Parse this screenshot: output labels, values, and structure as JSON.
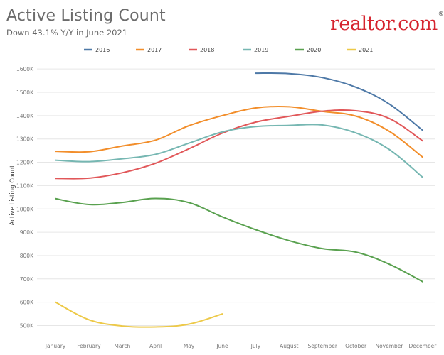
{
  "header": {
    "title": "Active Listing Count",
    "subtitle": "Down 43.1% Y/Y in June 2021",
    "logo_text": "realtor.com",
    "logo_mark": "®"
  },
  "colors": {
    "logo": "#d6242f",
    "grid": "#e6e6e6"
  },
  "chart_data": {
    "type": "line",
    "title": "Active Listing Count",
    "subtitle": "Down 43.1% Y/Y in June 2021",
    "xlabel": "",
    "ylabel": "Active Listing Count",
    "categories": [
      "January",
      "February",
      "March",
      "April",
      "May",
      "June",
      "July",
      "August",
      "September",
      "October",
      "November",
      "December"
    ],
    "y_ticks": [
      "500K",
      "600K",
      "700K",
      "800K",
      "900K",
      "1000K",
      "1100K",
      "1200K",
      "1300K",
      "1400K",
      "1500K",
      "1600K"
    ],
    "ylim": [
      460000,
      1640000
    ],
    "grid": true,
    "legend_position": "top",
    "series": [
      {
        "name": "2016",
        "color": "#4e79a7",
        "values": [
          null,
          null,
          null,
          null,
          null,
          null,
          1582000,
          1580000,
          1563000,
          1522000,
          1450000,
          1337000
        ]
      },
      {
        "name": "2017",
        "color": "#f28e2b",
        "values": [
          1247000,
          1245000,
          1270000,
          1295000,
          1357000,
          1400000,
          1433000,
          1438000,
          1418000,
          1398000,
          1333000,
          1222000
        ]
      },
      {
        "name": "2018",
        "color": "#e15759",
        "values": [
          1131000,
          1132000,
          1155000,
          1196000,
          1258000,
          1325000,
          1372000,
          1397000,
          1419000,
          1421000,
          1388000,
          1292000
        ]
      },
      {
        "name": "2019",
        "color": "#76b7b2",
        "values": [
          1209000,
          1203000,
          1215000,
          1234000,
          1282000,
          1330000,
          1353000,
          1358000,
          1360000,
          1326000,
          1255000,
          1136000
        ]
      },
      {
        "name": "2020",
        "color": "#59a14f",
        "values": [
          1044000,
          1019000,
          1028000,
          1045000,
          1027000,
          966000,
          911000,
          864000,
          830000,
          815000,
          763000,
          688000
        ]
      },
      {
        "name": "2021",
        "color": "#edc948",
        "values": [
          600000,
          525000,
          498000,
          494000,
          506000,
          550000,
          null,
          null,
          null,
          null,
          null,
          null
        ]
      }
    ]
  }
}
